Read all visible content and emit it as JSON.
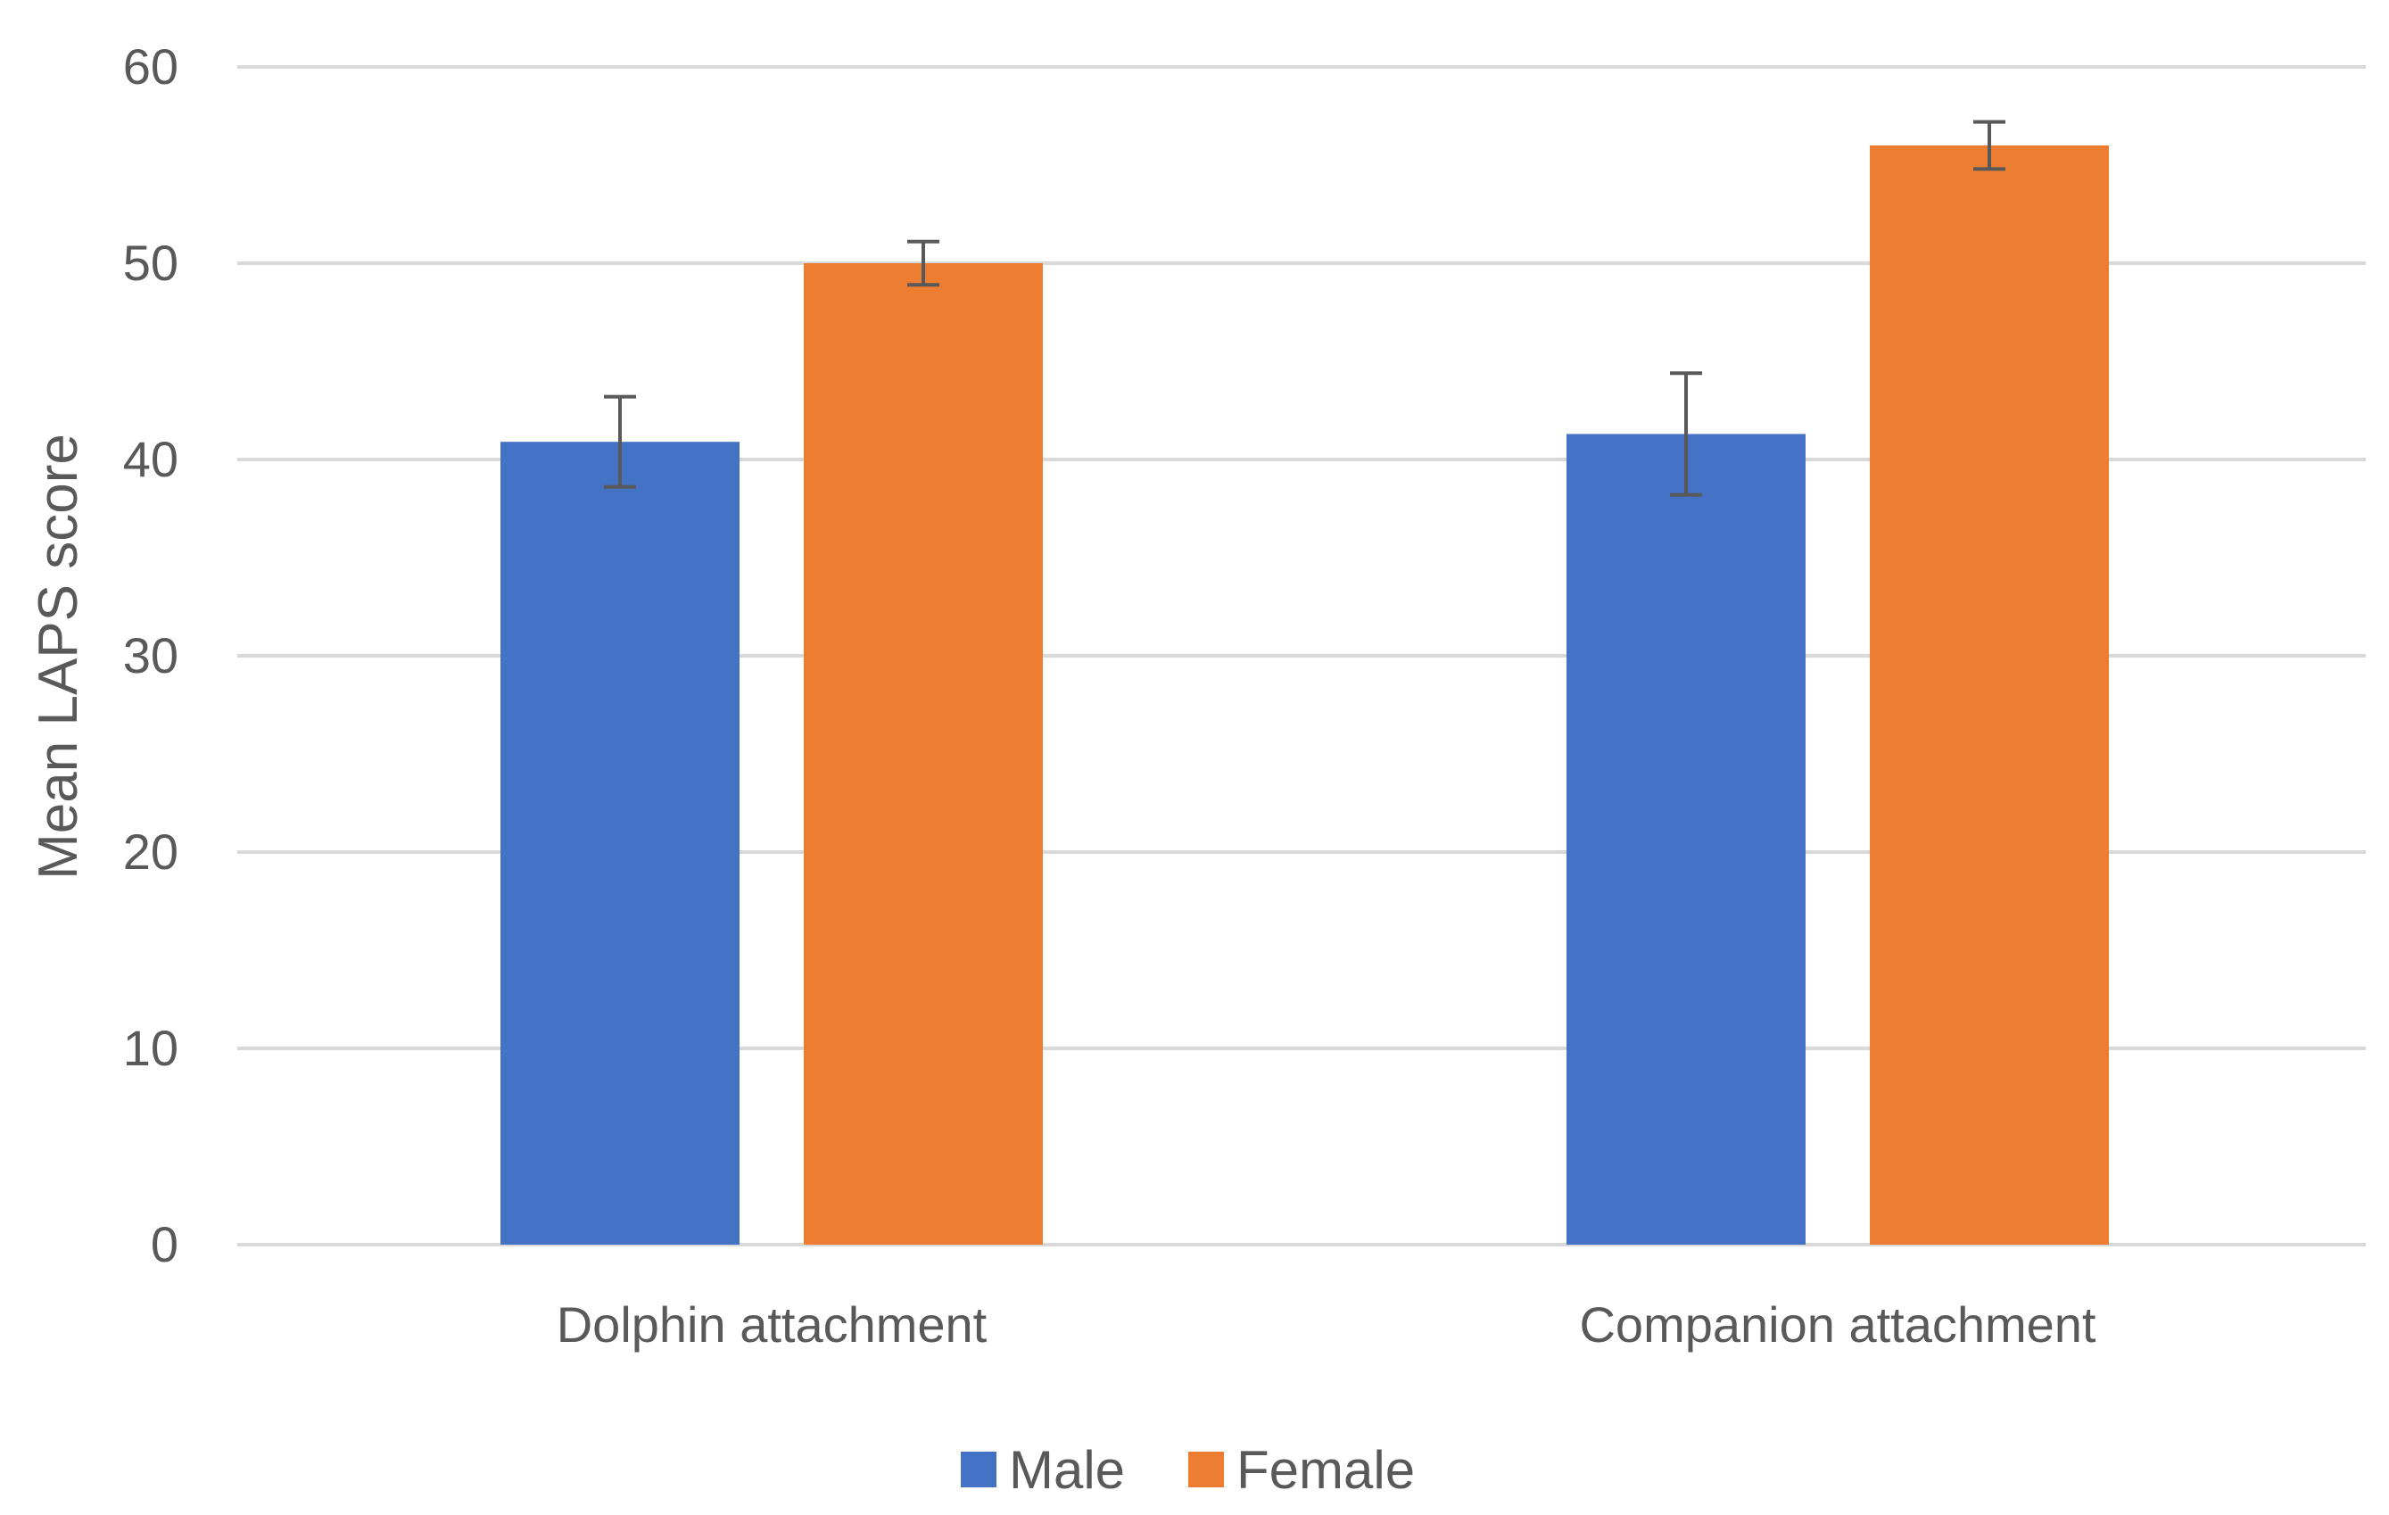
{
  "chart_data": {
    "type": "bar",
    "title": "",
    "xlabel": "",
    "ylabel": "Mean LAPS score",
    "categories": [
      "Dolphin attachment",
      "Companion attachment"
    ],
    "series": [
      {
        "name": "Male",
        "color": "#4472c4",
        "values": [
          40.9,
          41.3
        ],
        "error": [
          2.3,
          3.1
        ]
      },
      {
        "name": "Female",
        "color": "#ed7d31",
        "values": [
          50.0,
          56.0
        ],
        "error": [
          1.1,
          1.2
        ]
      }
    ],
    "ylim": [
      0,
      60
    ],
    "yticks": [
      0,
      10,
      20,
      30,
      40,
      50,
      60
    ],
    "ytick_labels": [
      "0",
      "10",
      "20",
      "30",
      "40",
      "50",
      "60"
    ],
    "grid": true,
    "legend_position": "bottom-center"
  }
}
